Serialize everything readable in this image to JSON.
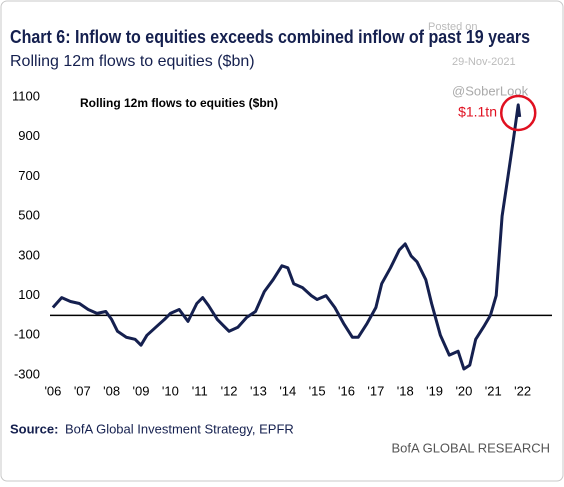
{
  "chart_data": {
    "type": "line",
    "title": "Chart 6: Inflow to equities exceeds combined inflow of past 19 years",
    "subtitle": "Rolling 12m flows to equities ($bn)",
    "inner_label": "Rolling 12m flows to equities ($bn)",
    "annotation": "$1.1tn",
    "watermark": [
      "Posted on",
      "29-Nov-2021",
      "@SoberLook"
    ],
    "source_label": "Source:",
    "source": "BofA Global Investment Strategy, EPFR",
    "brand": "BofA GLOBAL RESEARCH",
    "color": "#15204f",
    "x": [
      2006.0,
      2006.3,
      2006.6,
      2006.9,
      2007.2,
      2007.5,
      2007.8,
      2008.0,
      2008.2,
      2008.5,
      2008.8,
      2009.0,
      2009.2,
      2009.5,
      2009.8,
      2010.0,
      2010.3,
      2010.6,
      2010.9,
      2011.1,
      2011.3,
      2011.6,
      2011.8,
      2012.0,
      2012.3,
      2012.6,
      2012.9,
      2013.2,
      2013.5,
      2013.8,
      2014.0,
      2014.2,
      2014.5,
      2014.8,
      2015.0,
      2015.3,
      2015.6,
      2015.9,
      2016.2,
      2016.4,
      2016.7,
      2017.0,
      2017.2,
      2017.5,
      2017.8,
      2018.0,
      2018.2,
      2018.4,
      2018.7,
      2018.9,
      2019.2,
      2019.5,
      2019.8,
      2020.0,
      2020.2,
      2020.4,
      2020.7,
      2020.9,
      2021.1,
      2021.3,
      2021.5,
      2021.7,
      2021.85,
      2021.9
    ],
    "values": [
      40,
      90,
      70,
      60,
      30,
      10,
      20,
      -20,
      -80,
      -110,
      -120,
      -150,
      -100,
      -60,
      -20,
      10,
      30,
      -30,
      60,
      90,
      50,
      -20,
      -50,
      -80,
      -60,
      -10,
      20,
      120,
      180,
      250,
      240,
      160,
      140,
      100,
      80,
      100,
      40,
      -40,
      -110,
      -110,
      -40,
      40,
      160,
      240,
      330,
      360,
      300,
      270,
      180,
      60,
      -100,
      -200,
      -180,
      -270,
      -250,
      -120,
      -50,
      0,
      100,
      500,
      700,
      900,
      1060,
      1000
    ],
    "xlim": [
      2005.9,
      2023.0
    ],
    "ylim": [
      -300,
      1100
    ],
    "yticks": [
      -300,
      -100,
      100,
      300,
      500,
      700,
      900,
      1100
    ],
    "xticks": [
      {
        "value": 2006,
        "label": "'06"
      },
      {
        "value": 2007,
        "label": "'07"
      },
      {
        "value": 2008,
        "label": "'08"
      },
      {
        "value": 2009,
        "label": "'09"
      },
      {
        "value": 2010,
        "label": "'10"
      },
      {
        "value": 2011,
        "label": "'11"
      },
      {
        "value": 2012,
        "label": "'12"
      },
      {
        "value": 2013,
        "label": "'13"
      },
      {
        "value": 2014,
        "label": "'14"
      },
      {
        "value": 2015,
        "label": "'15"
      },
      {
        "value": 2016,
        "label": "'16"
      },
      {
        "value": 2017,
        "label": "'17"
      },
      {
        "value": 2018,
        "label": "'18"
      },
      {
        "value": 2019,
        "label": "'19"
      },
      {
        "value": 2020,
        "label": "'20"
      },
      {
        "value": 2021,
        "label": "'21"
      },
      {
        "value": 2022,
        "label": "'22"
      }
    ]
  }
}
